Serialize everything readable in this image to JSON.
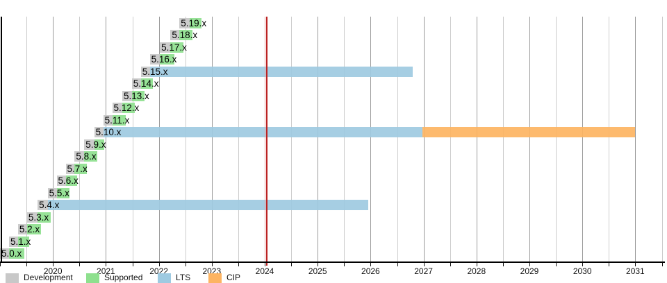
{
  "chart_data": {
    "type": "gantt-timeline",
    "description": "Timeline of Linux kernel 5.x version support phases",
    "x_axis": {
      "start": 2019.0,
      "end": 2031.55,
      "year_labels": [
        2020,
        2021,
        2022,
        2023,
        2024,
        2025,
        2026,
        2027,
        2028,
        2029,
        2030,
        2031
      ],
      "gridline_step_years": 0.5,
      "grid": true
    },
    "today_marker": {
      "year": 2024.02,
      "color": "#bb2222"
    },
    "colors": {
      "development": "#c8c8c8",
      "supported": "#8ee08e",
      "lts": "#9ecae1",
      "cip": "#fdb462",
      "grid_year": "#999999",
      "grid_half": "#cccccc",
      "axis": "#000000",
      "background": "#ffffff"
    },
    "legend": [
      {
        "key": "development",
        "label": "Development",
        "color": "#c8c8c8"
      },
      {
        "key": "supported",
        "label": "Supported",
        "color": "#8ee08e"
      },
      {
        "key": "lts",
        "label": "LTS",
        "color": "#9ecae1"
      },
      {
        "key": "cip",
        "label": "CIP",
        "color": "#fdb462"
      }
    ],
    "legend_position": "bottom-left",
    "rows": [
      {
        "label": "5.19.x",
        "dev_start": 2022.39,
        "release": 2022.58,
        "eol": 2022.81,
        "type": "supported"
      },
      {
        "label": "5.18.x",
        "dev_start": 2022.22,
        "release": 2022.39,
        "eol": 2022.64,
        "type": "supported"
      },
      {
        "label": "5.17.x",
        "dev_start": 2022.02,
        "release": 2022.22,
        "eol": 2022.46,
        "type": "supported"
      },
      {
        "label": "5.16.x",
        "dev_start": 2021.83,
        "release": 2022.02,
        "eol": 2022.29,
        "type": "supported"
      },
      {
        "label": "5.15.x",
        "dev_start": 2021.66,
        "release": 2021.83,
        "eol": 2026.79,
        "type": "lts"
      },
      {
        "label": "5.14.x",
        "dev_start": 2021.49,
        "release": 2021.66,
        "eol": 2021.89,
        "type": "supported"
      },
      {
        "label": "5.13.x",
        "dev_start": 2021.31,
        "release": 2021.49,
        "eol": 2021.73,
        "type": "supported"
      },
      {
        "label": "5.12.x",
        "dev_start": 2021.12,
        "release": 2021.31,
        "eol": 2021.55,
        "type": "supported"
      },
      {
        "label": "5.11.x",
        "dev_start": 2020.95,
        "release": 2021.12,
        "eol": 2021.38,
        "type": "supported"
      },
      {
        "label": "5.10.x",
        "dev_start": 2020.78,
        "release": 2020.95,
        "eol": 2026.98,
        "type": "lts",
        "cip_end": 2031.0
      },
      {
        "label": "5.9.x",
        "dev_start": 2020.59,
        "release": 2020.78,
        "eol": 2020.97,
        "type": "supported"
      },
      {
        "label": "5.8.x",
        "dev_start": 2020.41,
        "release": 2020.59,
        "eol": 2020.84,
        "type": "supported"
      },
      {
        "label": "5.7.x",
        "dev_start": 2020.24,
        "release": 2020.41,
        "eol": 2020.64,
        "type": "supported"
      },
      {
        "label": "5.6.x",
        "dev_start": 2020.07,
        "release": 2020.24,
        "eol": 2020.46,
        "type": "supported"
      },
      {
        "label": "5.5.x",
        "dev_start": 2019.9,
        "release": 2020.07,
        "eol": 2020.31,
        "type": "supported"
      },
      {
        "label": "5.4.x",
        "dev_start": 2019.71,
        "release": 2019.9,
        "eol": 2025.96,
        "type": "lts"
      },
      {
        "label": "5.3.x",
        "dev_start": 2019.51,
        "release": 2019.71,
        "eol": 2019.96,
        "type": "supported"
      },
      {
        "label": "5.2.x",
        "dev_start": 2019.34,
        "release": 2019.51,
        "eol": 2019.77,
        "type": "supported"
      },
      {
        "label": "5.1.x",
        "dev_start": 2019.17,
        "release": 2019.34,
        "eol": 2019.55,
        "type": "supported"
      },
      {
        "label": "5.0.x",
        "dev_start": 2019.0,
        "release": 2019.17,
        "eol": 2019.46,
        "type": "supported"
      }
    ]
  }
}
